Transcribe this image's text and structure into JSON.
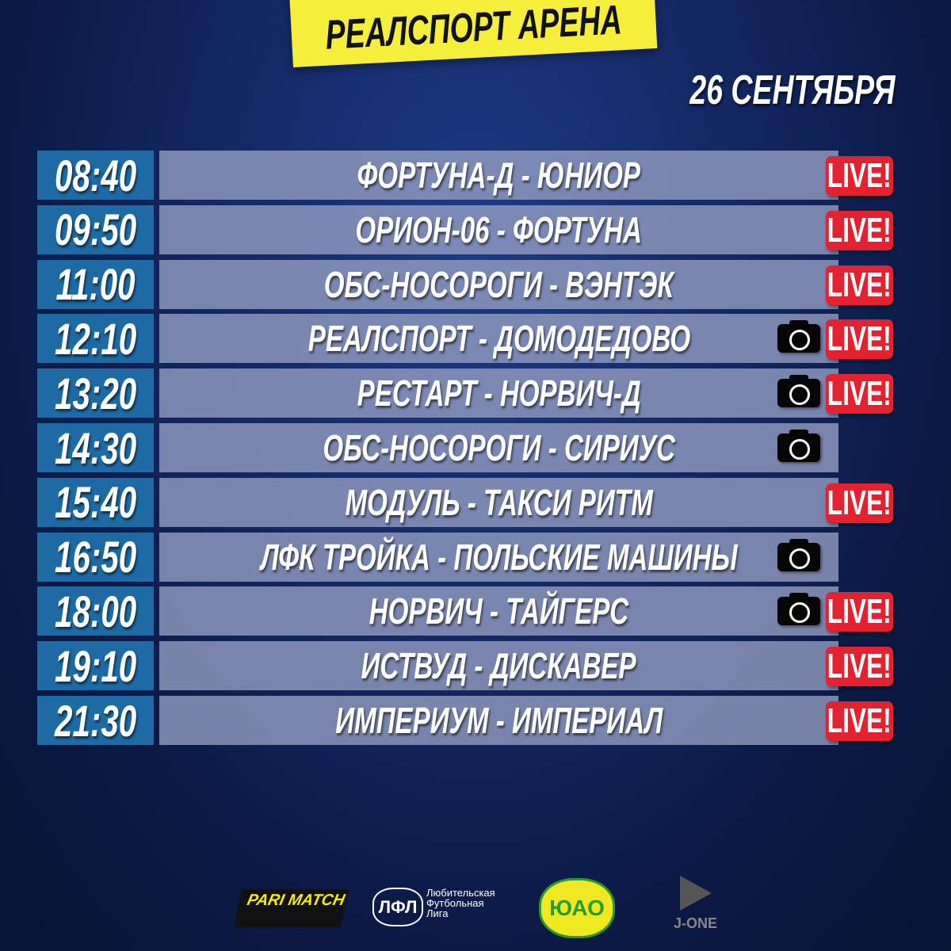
{
  "title": "РЕАЛСПОРТ АРЕНА",
  "date": "26 СЕНТЯБРЯ",
  "live_label": "LIVE!",
  "colors": {
    "banner": "#f5ee3a",
    "time_box": "#1d6aa5",
    "live": "#e3212f",
    "background": "#142a66"
  },
  "matches": [
    {
      "time": "08:40",
      "teams": "ФОРТУНА-Д - ЮНИОР",
      "photo": false,
      "live": true
    },
    {
      "time": "09:50",
      "teams": "ОРИОН-06 - ФОРТУНА",
      "photo": false,
      "live": true
    },
    {
      "time": "11:00",
      "teams": "ОБС-НОСОРОГИ - ВЭНТЭК",
      "photo": false,
      "live": true
    },
    {
      "time": "12:10",
      "teams": "РЕАЛСПОРТ - ДОМОДЕДОВО",
      "photo": true,
      "live": true
    },
    {
      "time": "13:20",
      "teams": "РЕСТАРТ - НОРВИЧ-Д",
      "photo": true,
      "live": true
    },
    {
      "time": "14:30",
      "teams": "ОБС-НОСОРОГИ - СИРИУС",
      "photo": true,
      "live": false
    },
    {
      "time": "15:40",
      "teams": "МОДУЛЬ - ТАКСИ РИТМ",
      "photo": false,
      "live": true
    },
    {
      "time": "16:50",
      "teams": "ЛФК ТРОЙКА - ПОЛЬСКИЕ МАШИНЫ",
      "photo": true,
      "live": false
    },
    {
      "time": "18:00",
      "teams": "НОРВИЧ - ТАЙГЕРС",
      "photo": true,
      "live": true
    },
    {
      "time": "19:10",
      "teams": "ИСТВУД - ДИСКАВЕР",
      "photo": false,
      "live": true
    },
    {
      "time": "21:30",
      "teams": "ИМПЕРИУМ - ИМПЕРИАЛ",
      "photo": false,
      "live": true
    }
  ],
  "sponsors": {
    "parimatch": "PARI MATCH",
    "afl_line1": "Любительская",
    "afl_line2": "Футбольная",
    "afl_line3": "Лига",
    "yuao": "ЮАО",
    "jone": "J-ONE"
  }
}
